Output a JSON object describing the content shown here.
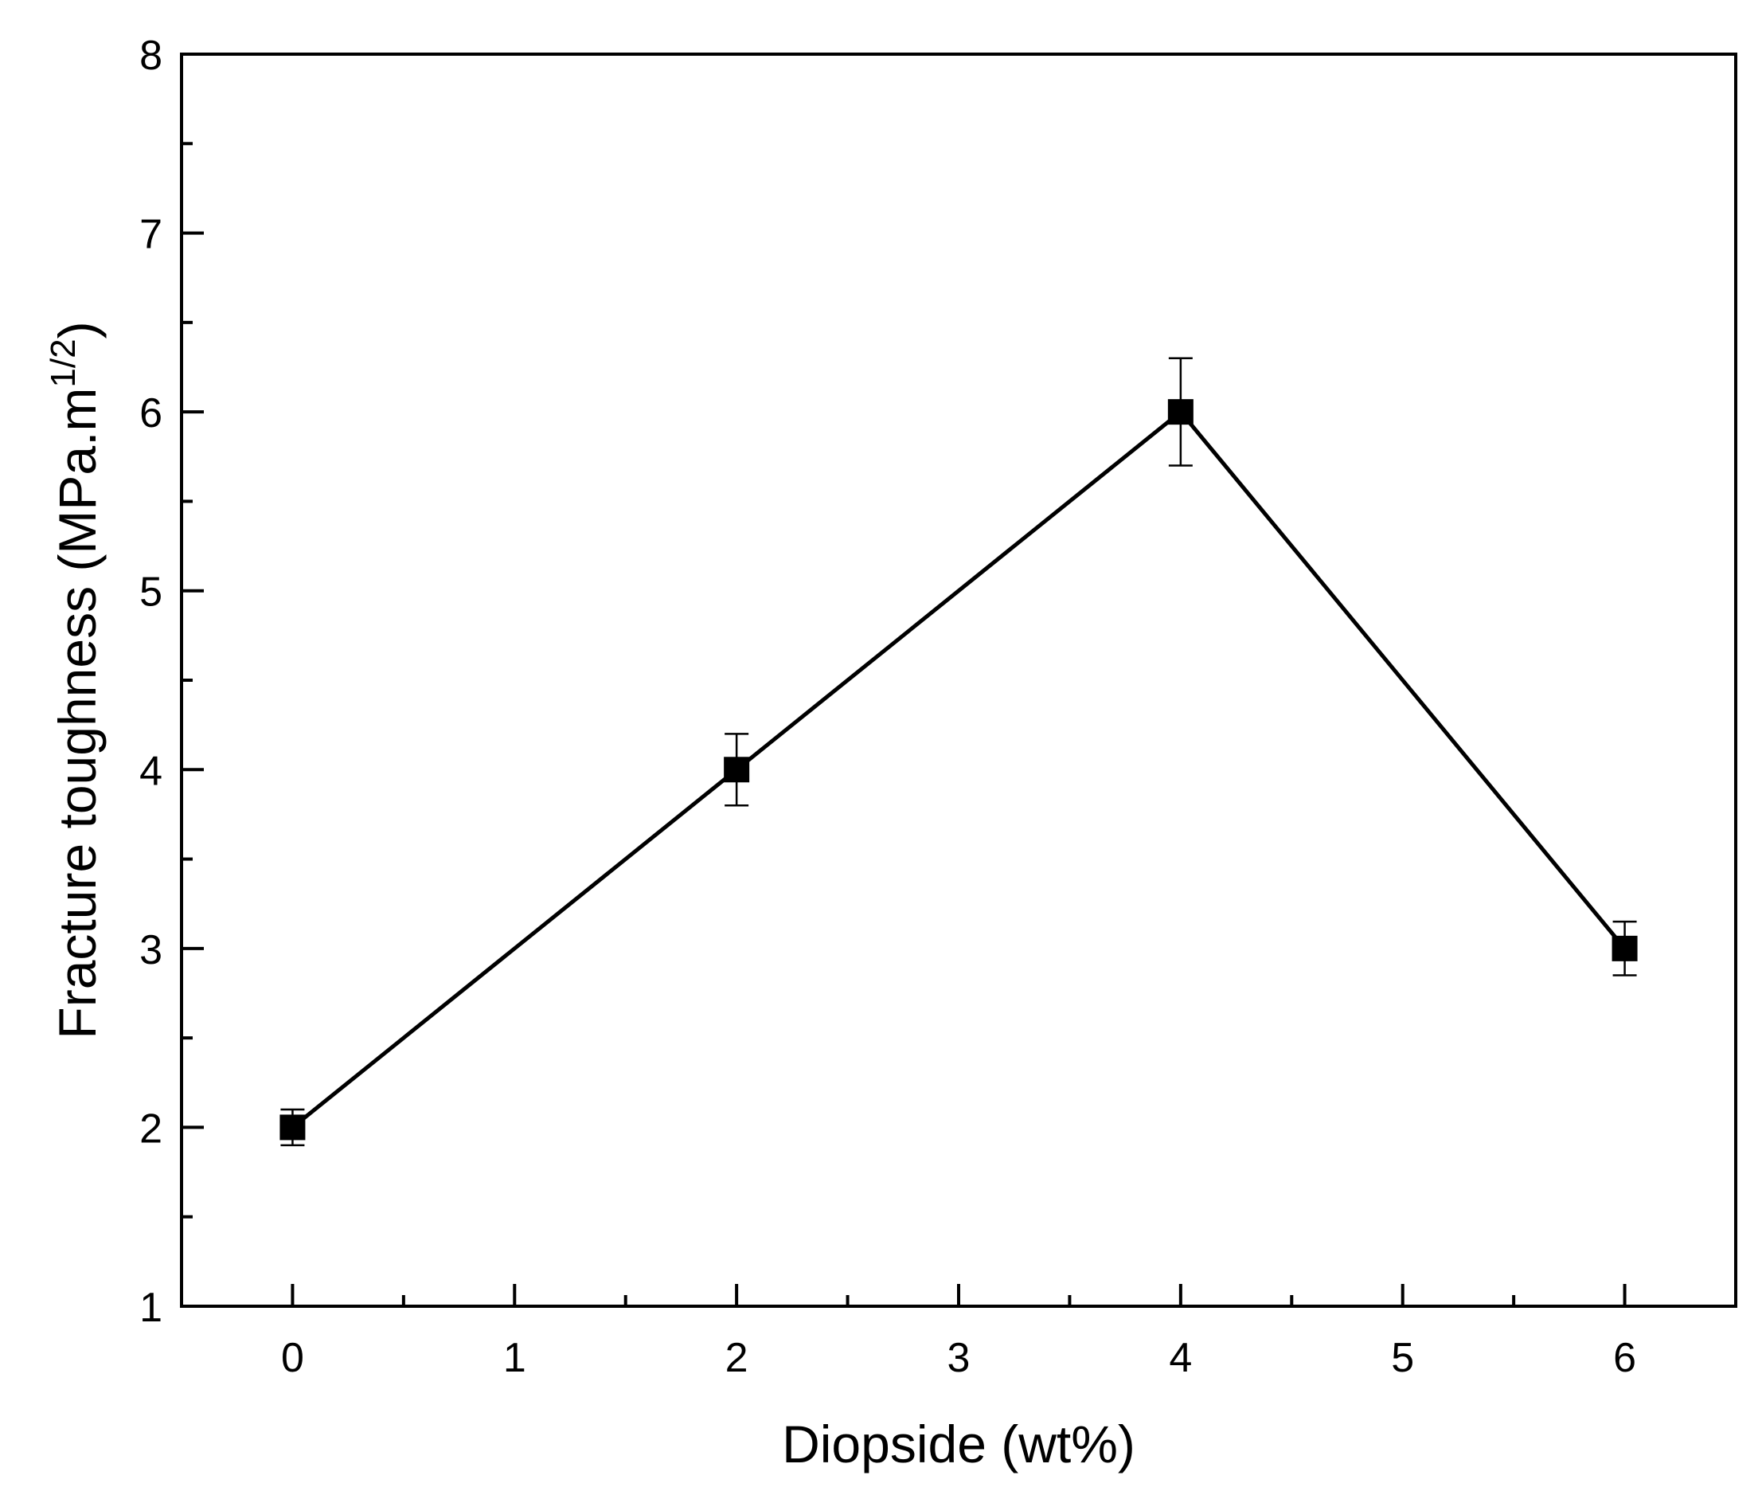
{
  "chart_data": {
    "type": "line",
    "title": "",
    "xlabel": "Diopside (wt%)",
    "ylabel_main": "Fracture toughness (MPa.m",
    "ylabel_sup": "1/2",
    "ylabel_close": ")",
    "xlim": [
      -0.5,
      6.5
    ],
    "ylim": [
      1,
      8
    ],
    "x_ticks": [
      0,
      1,
      2,
      3,
      4,
      5,
      6
    ],
    "y_ticks": [
      1,
      2,
      3,
      4,
      5,
      6,
      7,
      8
    ],
    "x_minor_ticks": [
      0.5,
      1.5,
      2.5,
      3.5,
      4.5,
      5.5
    ],
    "y_minor_ticks": [
      1.5,
      2.5,
      3.5,
      4.5,
      5.5,
      6.5,
      7.5
    ],
    "grid": false,
    "legend": "none",
    "marker": "square",
    "color": "#000000",
    "series": [
      {
        "x": [
          0,
          2,
          4,
          6
        ],
        "y": [
          2.0,
          4.0,
          6.0,
          3.0
        ],
        "error": [
          0.1,
          0.2,
          0.3,
          0.15
        ]
      }
    ]
  }
}
